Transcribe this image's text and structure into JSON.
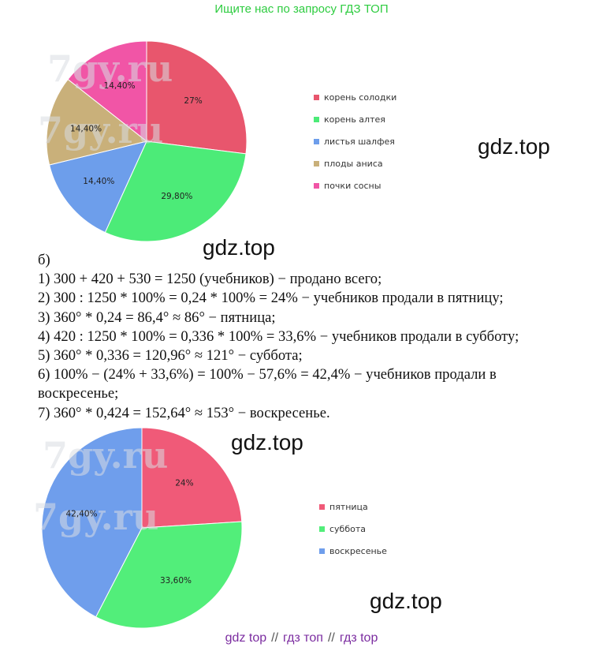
{
  "banner": "Ищите нас по запросу ГДЗ ТОП",
  "watermark_text": "gdz.top",
  "site_watermark": [
    "7gy.ru",
    "7gy.ru",
    "7gy.ru",
    "7gy.ru"
  ],
  "text_lines": [
    "б)",
    "1) 300 + 420 + 530 = 1250 (учебников) − продано всего;",
    "2) 300 : 1250 * 100% = 0,24 * 100% = 24% − учебников продали в пятницу;",
    "3) 360° * 0,24 = 86,4° ≈ 86° − пятница;",
    "4) 420 : 1250 * 100% = 0,336 * 100% = 33,6% − учебников продали в субботу;",
    "5) 360° * 0,336 = 120,96° ≈ 121° − суббота;",
    "6) 100% − (24% + 33,6%) = 100% − 57,6% = 42,4% − учебников продали в",
    "воскресенье;",
    "7) 360° * 0,424 = 152,64° ≈ 153° − воскресенье."
  ],
  "footer": {
    "link1": "gdz top",
    "link2": "гдз топ",
    "link3": "гдз top",
    "separator": "//"
  },
  "chart_data": [
    {
      "type": "pie",
      "values": [
        27,
        29.8,
        14.4,
        14.4,
        14.4
      ],
      "labels": [
        "27%",
        "29,80%",
        "14,40%",
        "14,40%",
        "14,40%"
      ],
      "legend": [
        "корень солодки",
        "корень алтея",
        "листья шалфея",
        "плоды аниса",
        "почки сосны"
      ],
      "colors": [
        "#e8566d",
        "#4ceb78",
        "#6d9eeb",
        "#c9b07a",
        "#f155a6"
      ],
      "legend_position": "right"
    },
    {
      "type": "pie",
      "values": [
        24,
        33.6,
        42.4
      ],
      "labels": [
        "24%",
        "33,60%",
        "42,40%"
      ],
      "legend": [
        "пятница",
        "суббота",
        "воскресенье"
      ],
      "colors": [
        "#f05a78",
        "#52ee7a",
        "#6f9eec"
      ],
      "legend_position": "right"
    }
  ]
}
